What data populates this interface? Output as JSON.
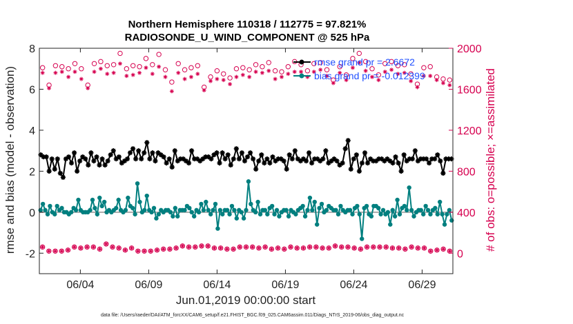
{
  "chart_data": {
    "type": "line",
    "title": [
      "Northern Hemisphere 110318 / 112775 = 97.821%",
      "RADIOSONDE_U_WIND_COMPONENT @ 525 hPa"
    ],
    "xlabel": "Jun.01,2019 00:00:00 start",
    "ylabel": "rmse and bias (model - observation)",
    "y2label": "# of obs: o=possible; ×=assimilated",
    "footnote": "data file: /Users/raeder/DAI/ATM_forcXX/CAM6_setup/f.e21.FHIST_BGC.f09_025.CAM6assim.011/Diags_NTrS_2019-06/obs_diag_output.nc",
    "xlim": [
      1.0,
      31.25
    ],
    "ylim": [
      -3,
      8
    ],
    "y2lim": [
      -200,
      2000
    ],
    "yticks": [
      -2,
      0,
      2,
      4,
      6,
      8
    ],
    "y2ticks": [
      0,
      400,
      800,
      1200,
      1600,
      2000
    ],
    "xticks": [
      {
        "x": 4,
        "label": "06/04"
      },
      {
        "x": 9,
        "label": "06/09"
      },
      {
        "x": 14,
        "label": "06/14"
      },
      {
        "x": 19,
        "label": "06/19"
      },
      {
        "x": 24,
        "label": "06/24"
      },
      {
        "x": 29,
        "label": "06/29"
      }
    ],
    "zero_line": 0,
    "legend": [
      "rmse grand pr = 2.6672",
      "bias grand pr = -0.012399"
    ],
    "colors": {
      "rmse": "#000000",
      "bias": "#007f7f",
      "obs": "#d6004f",
      "zero": "#aaaaaa",
      "legend_text": "#1f4fff"
    },
    "series": [
      {
        "name": "rmse",
        "values": [
          2.8,
          2.7,
          2.7,
          2.0,
          2.6,
          2.1,
          2.6,
          1.9,
          1.7,
          2.6,
          2.7,
          2.4,
          2.9,
          2.0,
          2.5,
          2.7,
          2.6,
          2.3,
          2.9,
          2.5,
          2.7,
          2.3,
          2.6,
          2.3,
          2.5,
          2.8,
          3.0,
          2.6,
          2.7,
          2.4,
          2.5,
          2.6,
          2.9,
          3.1,
          2.6,
          3.0,
          2.6,
          2.9,
          3.4,
          2.6,
          2.9,
          2.5,
          2.9,
          2.8,
          2.7,
          2.4,
          2.6,
          2.2,
          3.0,
          2.5,
          2.6,
          2.6,
          2.5,
          2.4,
          3.0,
          2.6,
          2.6,
          2.5,
          2.6,
          2.7,
          2.7,
          2.6,
          2.8,
          2.9,
          2.4,
          2.9,
          2.6,
          2.8,
          2.3,
          2.6,
          3.1,
          2.6,
          2.9,
          2.5,
          2.7,
          2.9,
          2.6,
          2.1,
          2.5,
          2.8,
          2.4,
          2.6,
          2.4,
          2.7,
          2.5,
          2.6,
          2.6,
          2.5,
          2.1,
          2.8,
          2.6,
          3.0,
          2.6,
          2.5,
          2.6,
          2.5,
          2.9,
          2.4,
          2.6,
          2.6,
          2.5,
          2.6,
          3.0,
          2.4,
          2.5,
          2.6,
          2.5,
          2.3,
          2.4,
          3.1,
          3.5,
          2.1,
          2.6,
          2.8,
          2.0,
          2.4,
          2.9,
          2.4,
          2.6,
          2.5,
          2.5,
          2.6,
          2.6,
          2.5,
          2.6,
          2.5,
          2.4,
          2.7,
          2.4,
          2.0,
          2.8,
          2.5,
          2.6,
          2.6,
          3.0,
          2.5,
          2.6,
          2.6,
          2.6,
          2.4,
          2.6,
          2.6,
          2.8,
          2.5,
          1.9,
          2.6,
          2.6,
          2.6
        ]
      },
      {
        "name": "bias",
        "values": [
          0.1,
          0.4,
          0.1,
          -0.1,
          0.3,
          0.0,
          -0.1,
          0.3,
          0.1,
          0.2,
          0.0,
          0.0,
          -0.1,
          0.0,
          0.2,
          0.1,
          0.6,
          0.1,
          0.0,
          0.0,
          0.0,
          0.1,
          0.6,
          0.2,
          -0.1,
          0.7,
          0.3,
          0.5,
          0.0,
          0.1,
          0.0,
          0.1,
          0.2,
          0.6,
          0.1,
          0.0,
          0.1,
          0.7,
          0.3,
          0.2,
          -0.1,
          1.4,
          0.5,
          0.0,
          0.1,
          0.8,
          0.1,
          0.0,
          0.2,
          -0.3,
          -0.1,
          0.1,
          0.0,
          0.1,
          0.1,
          0.0,
          -0.2,
          0.2,
          -0.2,
          0.1,
          0.1,
          0.1,
          0.3,
          0.2,
          0.0,
          -0.2,
          0.1,
          0.0,
          0.4,
          0.1,
          0.5,
          0.1,
          -0.1,
          0.1,
          0.4,
          -0.8,
          0.1,
          -0.1,
          0.1,
          0.1,
          -0.1,
          0.3,
          0.1,
          -0.3,
          0.1,
          0.0,
          -0.3,
          0.1,
          1.5,
          0.4,
          0.1,
          0.0,
          0.5,
          -0.1,
          0.1,
          0.1,
          -0.1,
          0.2,
          0.3,
          -0.1,
          0.1,
          -0.2,
          0.0,
          0.1,
          0.1,
          -0.2,
          0.1,
          0.0,
          -0.1,
          0.1,
          0.2,
          0.3,
          -0.2,
          0.1,
          0.7,
          0.1,
          0.5,
          -0.6,
          0.2,
          0.4,
          0.0,
          0.1,
          0.3,
          0.2,
          0.1,
          0.1,
          -0.1,
          0.3,
          0.1,
          0.0,
          0.1,
          0.1,
          -0.1,
          0.2,
          0.3,
          -0.1,
          -1.3,
          0.2,
          0.3,
          -0.1,
          -0.2,
          0.3,
          0.3,
          0.2,
          -0.1,
          0.1,
          -0.1,
          0.0,
          -0.6,
          0.1,
          -0.2,
          0.6,
          -0.1,
          0.2,
          0.3,
          0.1,
          1.2,
          0.1,
          -0.2,
          0.0,
          0.1,
          0.1,
          -0.1,
          0.3,
          0.1,
          -0.1,
          0.1,
          0.2,
          -0.1,
          0.5,
          -0.1,
          -0.6,
          -0.1,
          0.1,
          -0.4
        ]
      },
      {
        "name": "obs_possible",
        "values": [
          1810,
          1640,
          1830,
          1820,
          1800,
          1850,
          1800,
          1640,
          1850,
          1870,
          1830,
          1840,
          1950,
          1800,
          1830,
          1820,
          1900,
          1840,
          1940,
          1790,
          1670,
          1850,
          1790,
          1810,
          1830,
          1620,
          1720,
          1780,
          1750,
          1710,
          1800,
          1810,
          1790,
          1840,
          1820,
          1860,
          1780,
          1770,
          1820,
          1870,
          1840,
          1780,
          1850,
          1860,
          1790,
          1690,
          1820,
          1740,
          1900,
          1950,
          1870,
          1800,
          1740,
          1850,
          1870,
          1830,
          1840,
          1750,
          1650,
          1810,
          1820,
          1720,
          1700,
          1690
        ]
      },
      {
        "name": "obs_assimilated",
        "values": [
          1760,
          1610,
          1760,
          1770,
          1720,
          1770,
          1700,
          1610,
          1770,
          1800,
          1750,
          1760,
          1850,
          1730,
          1740,
          1760,
          1810,
          1750,
          1820,
          1720,
          1580,
          1760,
          1700,
          1720,
          1750,
          1590,
          1680,
          1700,
          1690,
          1650,
          1720,
          1740,
          1720,
          1770,
          1760,
          1780,
          1700,
          1720,
          1750,
          1770,
          1770,
          1720,
          1770,
          1790,
          1730,
          1660,
          1760,
          1690,
          1810,
          1860,
          1780,
          1720,
          1690,
          1770,
          1790,
          1750,
          1760,
          1680,
          1620,
          1730,
          1730,
          1690,
          1660,
          1640
        ]
      },
      {
        "name": "obs_possible_low",
        "values": [
          60,
          20,
          20,
          20,
          30,
          60,
          50,
          60,
          60,
          40,
          90,
          60,
          50,
          30,
          50,
          20,
          20,
          20,
          30,
          40,
          40,
          50,
          70,
          60,
          60,
          70,
          70,
          50,
          50,
          40,
          40,
          60,
          60,
          60,
          50,
          60,
          40,
          50,
          40,
          60,
          50,
          50,
          60,
          60,
          50,
          50,
          70,
          60,
          60,
          50,
          40,
          60,
          60,
          60,
          60,
          50,
          50,
          40,
          60,
          50,
          50,
          20,
          30,
          40,
          20
        ]
      }
    ]
  }
}
